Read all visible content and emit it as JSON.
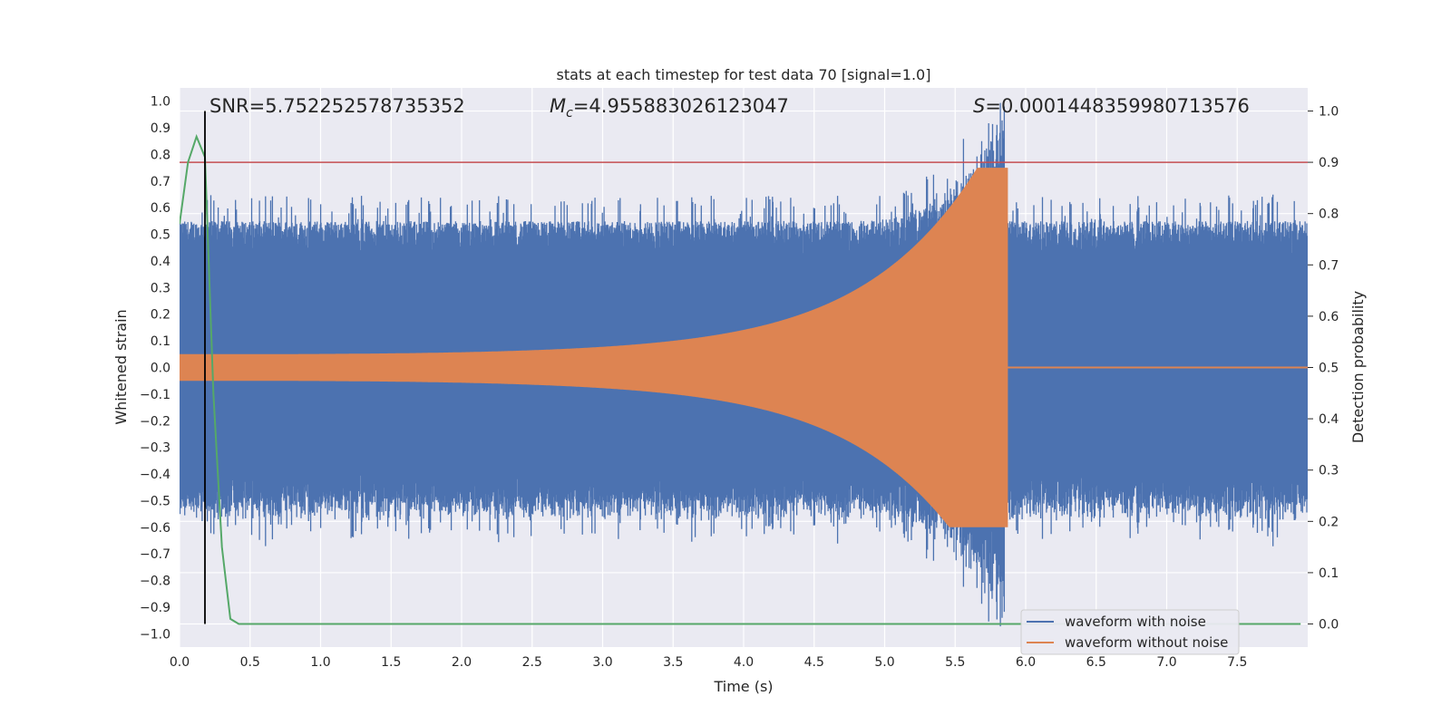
{
  "chart_data": {
    "type": "line",
    "title": "stats at each timestep for test data 70 [signal=1.0]",
    "xlabel": "Time (s)",
    "ylabel": "Whitened strain",
    "y2label": "Detection probability",
    "xlim": [
      0.0,
      8.0
    ],
    "ylim": [
      -1.05,
      1.05
    ],
    "y2lim": [
      -0.045,
      1.045
    ],
    "x_ticks": [
      "0.0",
      "0.5",
      "1.0",
      "1.5",
      "2.0",
      "2.5",
      "3.0",
      "3.5",
      "4.0",
      "4.5",
      "5.0",
      "5.5",
      "6.0",
      "6.5",
      "7.0",
      "7.5"
    ],
    "y_ticks": [
      "1.0",
      "0.9",
      "0.8",
      "0.7",
      "0.6",
      "0.5",
      "0.4",
      "0.3",
      "0.2",
      "0.1",
      "0.0",
      "−0.1",
      "−0.2",
      "−0.3",
      "−0.4",
      "−0.5",
      "−0.6",
      "−0.7",
      "−0.8",
      "−0.9",
      "−1.0"
    ],
    "y2_ticks": [
      "1.0",
      "0.9",
      "0.8",
      "0.7",
      "0.6",
      "0.5",
      "0.4",
      "0.3",
      "0.2",
      "0.1",
      "0.0"
    ],
    "annotations": {
      "snr": "SNR=5.752252578735352",
      "mc_symbol": "M",
      "mc_sub": "c",
      "mc_value": "=4.955883026123047",
      "s_symbol": "S",
      "s_value": "=0.0001448359980713576"
    },
    "legend": {
      "position": "lower-right",
      "entries": [
        "waveform with noise",
        "waveform without noise"
      ]
    },
    "threshold_y2": 0.9,
    "marker_x": 0.18,
    "merger_x": 5.85,
    "series": [
      {
        "name": "waveform with noise",
        "color": "#4c72b0",
        "noise_envelope": 0.55,
        "peak_near_merger": 0.98
      },
      {
        "name": "waveform without noise",
        "color": "#dd8452",
        "amp_start": 0.05,
        "amp_peak": 0.75,
        "merger_t": 5.85
      },
      {
        "color": "#55a868",
        "x": [
          0.0,
          0.06,
          0.12,
          0.18,
          0.24,
          0.3,
          0.36,
          0.42,
          0.5,
          1.0,
          2.0,
          3.0,
          4.0,
          5.0,
          6.0,
          7.0,
          7.95
        ],
        "y2": [
          0.78,
          0.9,
          0.95,
          0.91,
          0.45,
          0.15,
          0.01,
          0.0,
          0.0,
          0.0,
          0.0,
          0.0,
          0.0,
          0.0,
          0.0,
          0.0,
          0.0
        ]
      }
    ],
    "colors": {
      "threshold": "#c44e52",
      "marker": "#000000",
      "background": "#eaeaf2",
      "grid": "#ffffff"
    }
  }
}
